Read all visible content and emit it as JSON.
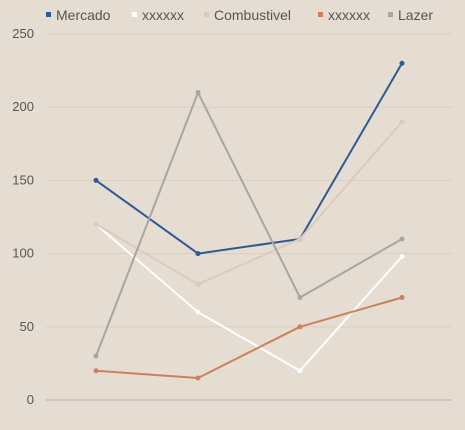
{
  "chart_data": {
    "type": "line",
    "title": "",
    "xlabel": "",
    "ylabel": "",
    "ylim": [
      0,
      250
    ],
    "yticks": [
      0,
      50,
      100,
      150,
      200,
      250
    ],
    "grid": true,
    "legend_position": "top",
    "x": [
      1,
      2,
      3,
      4
    ],
    "series": [
      {
        "name": "Mercado",
        "color": "#2f5b93",
        "values": [
          150,
          100,
          110,
          230
        ]
      },
      {
        "name": "xxxxxx",
        "color": "#ffffff",
        "values": [
          120,
          60,
          20,
          98
        ]
      },
      {
        "name": "Combustivel",
        "color": "#dccbbd",
        "values": [
          120,
          79,
          110,
          190
        ]
      },
      {
        "name": "xxxxxx",
        "color": "#c9825a",
        "values": [
          20,
          15,
          50,
          70
        ]
      },
      {
        "name": "Lazer",
        "color": "#a9a5a2",
        "values": [
          30,
          210,
          70,
          110
        ]
      }
    ]
  }
}
